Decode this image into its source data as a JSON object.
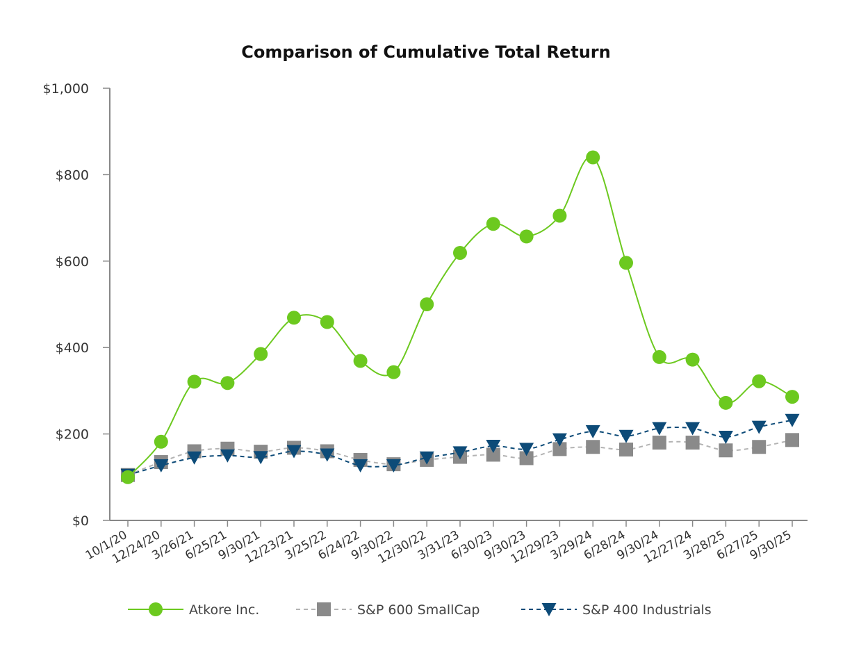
{
  "chart_data": {
    "type": "line",
    "title": "Comparison of Cumulative Total Return",
    "xlabel": "",
    "ylabel": "",
    "ylim": [
      0,
      1000
    ],
    "y_ticks": [
      0,
      200,
      400,
      600,
      800,
      1000
    ],
    "y_tick_labels": [
      "$0",
      "$200",
      "$400",
      "$600",
      "$800",
      "$1,000"
    ],
    "categories": [
      "10/1/20",
      "12/24/20",
      "3/26/21",
      "6/25/21",
      "9/30/21",
      "12/23/21",
      "3/25/22",
      "6/24/22",
      "9/30/22",
      "12/30/22",
      "3/31/23",
      "6/30/23",
      "9/30/23",
      "12/29/23",
      "3/29/24",
      "6/28/24",
      "9/30/24",
      "12/27/24",
      "3/28/25",
      "6/27/25",
      "9/30/25"
    ],
    "legend_position": "bottom",
    "series": [
      {
        "name": "Atkore Inc.",
        "color": "#6cc91f",
        "marker": "circle",
        "line_style": "solid",
        "values": [
          100,
          182,
          321,
          318,
          385,
          469,
          459,
          369,
          343,
          500,
          619,
          686,
          657,
          705,
          840,
          596,
          378,
          372,
          272,
          322,
          286
        ]
      },
      {
        "name": "S&P 600 SmallCap",
        "color": "#8a8a8a",
        "line_color": "#b3b3b3",
        "marker": "square",
        "line_style": "dashed",
        "values": [
          105,
          135,
          160,
          166,
          159,
          168,
          160,
          140,
          130,
          140,
          147,
          152,
          144,
          165,
          170,
          164,
          180,
          180,
          162,
          170,
          186
        ]
      },
      {
        "name": "S&P 400 Industrials",
        "color": "#0d4b78",
        "marker": "triangle-down",
        "line_style": "dashed",
        "values": [
          105,
          127,
          145,
          150,
          146,
          160,
          152,
          127,
          127,
          145,
          157,
          172,
          165,
          187,
          206,
          195,
          213,
          213,
          193,
          216,
          232
        ]
      }
    ]
  }
}
